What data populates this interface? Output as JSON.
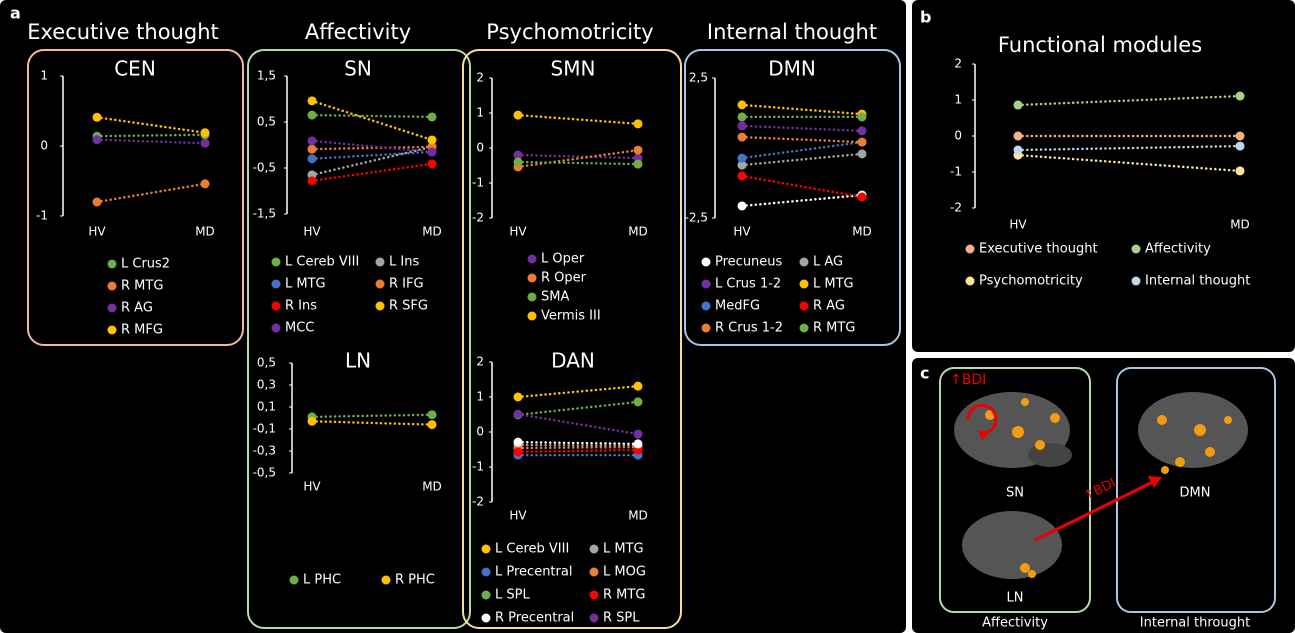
{
  "panel_labels": [
    "a",
    "b",
    "c"
  ],
  "sections": [
    "Executive thought",
    "Affectivity",
    "Psychomotricity",
    "Internal thought"
  ],
  "panel_c": {
    "bdi_top": "↑BDI",
    "sn": "SN",
    "ln": "LN",
    "bdi_arrow": "↑BDI",
    "dmn": "DMN",
    "affectivity": "Affectivity",
    "internal": "Internal throught"
  },
  "chart_data": [
    {
      "type": "line",
      "title": "CEN",
      "categories": [
        "HV",
        "MD"
      ],
      "ylim": [
        -1,
        1
      ],
      "yticks": [
        1,
        0,
        -1
      ],
      "series": [
        {
          "name": "L Crus2",
          "color": "#70ad47",
          "values": [
            0.14,
            0.16
          ]
        },
        {
          "name": "R MTG",
          "color": "#ed7d31",
          "values": [
            -0.8,
            -0.54
          ]
        },
        {
          "name": "R AG",
          "color": "#7030a0",
          "values": [
            0.09,
            0.04
          ]
        },
        {
          "name": "R MFG",
          "color": "#ffc000",
          "values": [
            0.41,
            0.19
          ]
        }
      ]
    },
    {
      "type": "line",
      "title": "SN",
      "categories": [
        "HV",
        "MD"
      ],
      "ylim": [
        -1.5,
        1.5
      ],
      "yticks": [
        {
          "value": 1.5,
          "label": "1,5"
        },
        {
          "value": 0.5,
          "label": "0,5"
        },
        {
          "value": -0.5,
          "label": "-0,5"
        },
        {
          "value": -1.5,
          "label": "-1,5"
        }
      ],
      "series": [
        {
          "name": "L Cereb VIII",
          "color": "#70ad47",
          "values": [
            0.65,
            0.61
          ]
        },
        {
          "name": "L Ins",
          "color": "#a5a5a5",
          "values": [
            -0.65,
            -0.04
          ]
        },
        {
          "name": "L MTG",
          "color": "#4472c4",
          "values": [
            -0.3,
            -0.15
          ]
        },
        {
          "name": "R IFG",
          "color": "#ed7d31",
          "values": [
            -0.09,
            -0.04
          ]
        },
        {
          "name": "R Ins",
          "color": "#ff0000",
          "values": [
            -0.78,
            -0.41
          ]
        },
        {
          "name": "R SFG",
          "color": "#ffc000",
          "values": [
            0.96,
            0.11
          ]
        },
        {
          "name": "MCC",
          "color": "#7030a0",
          "values": [
            0.09,
            -0.15
          ]
        }
      ]
    },
    {
      "type": "line",
      "title": "LN",
      "categories": [
        "HV",
        "MD"
      ],
      "ylim": [
        -0.5,
        0.5
      ],
      "yticks": [
        {
          "value": 0.5,
          "label": "0,5"
        },
        {
          "value": 0.3,
          "label": "0,3"
        },
        {
          "value": 0.1,
          "label": "0,1"
        },
        {
          "value": -0.1,
          "label": "-0,1"
        },
        {
          "value": -0.3,
          "label": "-0,3"
        },
        {
          "value": -0.5,
          "label": "-0,5"
        }
      ],
      "series": [
        {
          "name": "L PHC",
          "color": "#70ad47",
          "values": [
            0.01,
            0.03
          ]
        },
        {
          "name": "R PHC",
          "color": "#ffc000",
          "values": [
            -0.03,
            -0.06
          ]
        }
      ]
    },
    {
      "type": "line",
      "title": "SMN",
      "categories": [
        "HV",
        "MD"
      ],
      "ylim": [
        -2,
        2
      ],
      "yticks": [
        2,
        1,
        0,
        -1,
        -2
      ],
      "series": [
        {
          "name": "L Oper",
          "color": "#7030a0",
          "values": [
            -0.2,
            -0.29
          ]
        },
        {
          "name": "R Oper",
          "color": "#ed7d31",
          "values": [
            -0.54,
            -0.06
          ]
        },
        {
          "name": "SMA",
          "color": "#70ad47",
          "values": [
            -0.4,
            -0.46
          ]
        },
        {
          "name": "Vermis III",
          "color": "#ffc000",
          "values": [
            0.94,
            0.69
          ]
        }
      ]
    },
    {
      "type": "line",
      "title": "DAN",
      "categories": [
        "HV",
        "MD"
      ],
      "ylim": [
        -2,
        2
      ],
      "yticks": [
        2,
        1,
        0,
        -1,
        -2
      ],
      "series": [
        {
          "name": "L Cereb VIII",
          "color": "#ffc000",
          "values": [
            1.0,
            1.31
          ]
        },
        {
          "name": "L MTG",
          "color": "#a5a5a5",
          "values": [
            -0.37,
            -0.4
          ]
        },
        {
          "name": "L Precentral",
          "color": "#4472c4",
          "values": [
            -0.66,
            -0.66
          ]
        },
        {
          "name": "L MOG",
          "color": "#ed7d31",
          "values": [
            -0.46,
            -0.43
          ]
        },
        {
          "name": "L SPL",
          "color": "#70ad47",
          "values": [
            0.49,
            0.86
          ]
        },
        {
          "name": "R MTG",
          "color": "#ff0000",
          "values": [
            -0.57,
            -0.51
          ]
        },
        {
          "name": "R Precentral",
          "color": "#ffffff",
          "values": [
            -0.29,
            -0.34
          ]
        },
        {
          "name": "R SPL",
          "color": "#7030a0",
          "values": [
            0.51,
            -0.06
          ]
        }
      ]
    },
    {
      "type": "line",
      "title": "DMN",
      "categories": [
        "HV",
        "MD"
      ],
      "ylim": [
        -2.5,
        2.5
      ],
      "yticks": [
        {
          "value": 2.5,
          "label": "2,5"
        },
        {
          "value": -2.5,
          "label": "-2,5"
        }
      ],
      "series": [
        {
          "name": "Precuneus",
          "color": "#ffffff",
          "values": [
            -2.07,
            -1.68
          ]
        },
        {
          "name": "L AG",
          "color": "#a5a5a5",
          "values": [
            -0.61,
            -0.21
          ]
        },
        {
          "name": "L Crus 1-2",
          "color": "#7030a0",
          "values": [
            0.79,
            0.61
          ]
        },
        {
          "name": "L MTG",
          "color": "#ffc000",
          "values": [
            1.54,
            1.21
          ]
        },
        {
          "name": "MedFG",
          "color": "#4472c4",
          "values": [
            -0.36,
            0.21
          ]
        },
        {
          "name": "R AG",
          "color": "#ff0000",
          "values": [
            -1.0,
            -1.75
          ]
        },
        {
          "name": "R Crus 1-2",
          "color": "#ed7d31",
          "values": [
            0.39,
            0.21
          ]
        },
        {
          "name": "R MTG",
          "color": "#70ad47",
          "values": [
            1.11,
            1.11
          ]
        }
      ]
    },
    {
      "type": "line",
      "title": "Functional modules",
      "categories": [
        "HV",
        "MD"
      ],
      "ylim": [
        -2,
        2
      ],
      "yticks": [
        2,
        1,
        0,
        -1,
        -2
      ],
      "series": [
        {
          "name": "Executive thought",
          "color": "#f4b183",
          "values": [
            0,
            0
          ]
        },
        {
          "name": "Affectivity",
          "color": "#a9d18e",
          "values": [
            0.86,
            1.11
          ]
        },
        {
          "name": "Psychomotricity",
          "color": "#ffe699",
          "values": [
            -0.53,
            -0.97
          ]
        },
        {
          "name": "Internal thought",
          "color": "#bdd7ee",
          "values": [
            -0.39,
            -0.28
          ]
        }
      ]
    }
  ]
}
